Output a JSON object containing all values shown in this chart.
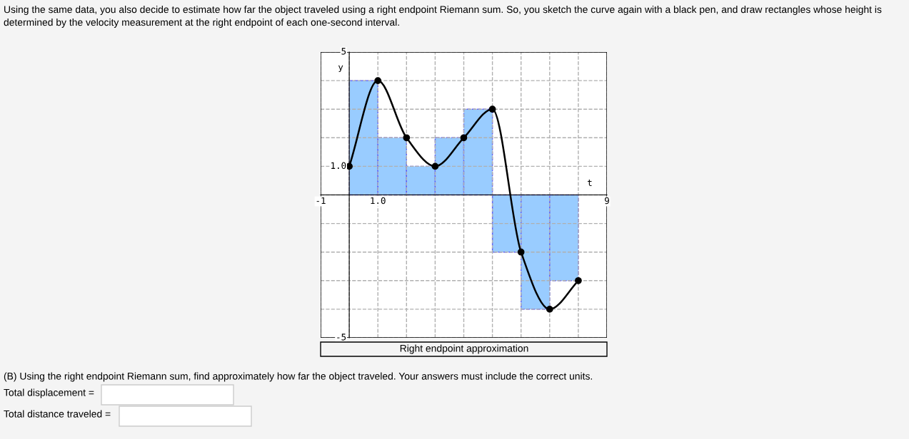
{
  "chart_data": {
    "type": "bar",
    "title": "Using the same data, you also decide to estimate how far the object traveled using a right endpoint Riemann sum. So, you sketch the curve again with a black pen, and draw rectangles whose height is determined by the velocity measurement at the right endpoint of each one-second interval.",
    "xlabel": "t",
    "ylabel": "y",
    "series": [
      {
        "color": "#99ccff",
        "x": [
          0.5,
          1.5,
          2.5,
          3.5,
          4.5,
          5.5,
          6.5,
          7.5
        ],
        "values": [
          4,
          2,
          1,
          2,
          3,
          -2,
          -4,
          -3
        ]
      },
      {
        "type": "line",
        "color": "#000000",
        "x": [
          0,
          1,
          2,
          3,
          4,
          5,
          6,
          7,
          8
        ],
        "values": [
          1,
          4,
          2,
          1,
          2,
          3,
          -2,
          -4,
          -3
        ]
      }
    ],
    "marker": "circle",
    "line_style": "solid",
    "xlim": [
      -1,
      9
    ],
    "ylim": [
      -5,
      5
    ],
    "xticks": [
      {
        "value": -1,
        "label": "-1"
      },
      {
        "value": 0,
        "label": null
      },
      {
        "value": 1,
        "label": "1.0"
      },
      {
        "value": 2,
        "label": null
      },
      {
        "value": 3,
        "label": null
      },
      {
        "value": 4,
        "label": null
      },
      {
        "value": 5,
        "label": null
      },
      {
        "value": 6,
        "label": null
      },
      {
        "value": 7,
        "label": null
      },
      {
        "value": 8,
        "label": null
      },
      {
        "value": 9,
        "label": "9"
      }
    ],
    "yticks": [
      {
        "value": -5,
        "label": "-5"
      },
      {
        "value": -4,
        "label": null
      },
      {
        "value": -3,
        "label": null
      },
      {
        "value": -2,
        "label": null
      },
      {
        "value": -1,
        "label": null
      },
      {
        "value": 0,
        "label": null
      },
      {
        "value": 1,
        "label": "1.0"
      },
      {
        "value": 2,
        "label": null
      },
      {
        "value": 3,
        "label": null
      },
      {
        "value": 4,
        "label": null
      },
      {
        "value": 5,
        "label": "5"
      }
    ],
    "grid": true,
    "annotations": [
      "Right endpoint approximation",
      "(B) Using the right endpoint Riemann sum, find approximately how far the object traveled. Your answers must include the correct units.",
      "Total displacement =",
      "Total distance traveled ="
    ]
  }
}
